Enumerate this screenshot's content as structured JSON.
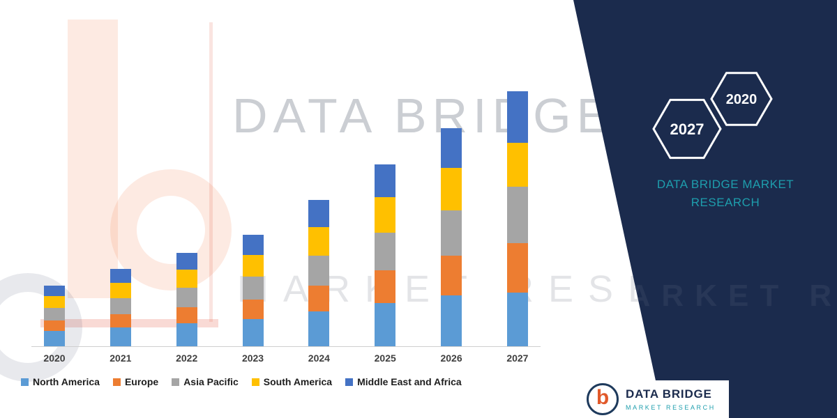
{
  "chart_data": {
    "type": "bar",
    "stacked": true,
    "title": "",
    "xlabel": "",
    "ylabel": "",
    "y_axis_visible": false,
    "grid": false,
    "legend_position": "bottom",
    "categories": [
      "2020",
      "2021",
      "2022",
      "2023",
      "2024",
      "2025",
      "2026",
      "2027"
    ],
    "series": [
      {
        "name": "North America",
        "color": "#5B9BD5",
        "values": [
          22,
          27,
          33,
          39,
          50,
          62,
          73,
          77
        ]
      },
      {
        "name": "Europe",
        "color": "#ED7D31",
        "values": [
          15,
          19,
          23,
          28,
          37,
          47,
          57,
          71
        ]
      },
      {
        "name": "Asia Pacific",
        "color": "#A5A5A5",
        "values": [
          18,
          23,
          28,
          33,
          43,
          54,
          65,
          81
        ]
      },
      {
        "name": "South America",
        "color": "#FFC000",
        "values": [
          17,
          22,
          26,
          31,
          41,
          51,
          61,
          63
        ]
      },
      {
        "name": "Middle East and Africa",
        "color": "#4472C4",
        "values": [
          15,
          20,
          24,
          29,
          39,
          47,
          57,
          74
        ]
      }
    ]
  },
  "side_panel": {
    "background_color": "#1b2b4d",
    "accent_color": "#1e9ead",
    "hexagons": [
      {
        "label": "2027"
      },
      {
        "label": "2020"
      }
    ],
    "title_line1": "DATA BRIDGE MARKET",
    "title_line2": "RESEARCH",
    "watermark_text": "MARKET RESEARCH"
  },
  "watermarks": {
    "line1": "DATA BRIDGE",
    "line2": "MARKET RESEARCH"
  },
  "footer_logo": {
    "icon_letter": "b",
    "name": "DATA BRIDGE",
    "subtext": "MARKET RESEARCH"
  }
}
